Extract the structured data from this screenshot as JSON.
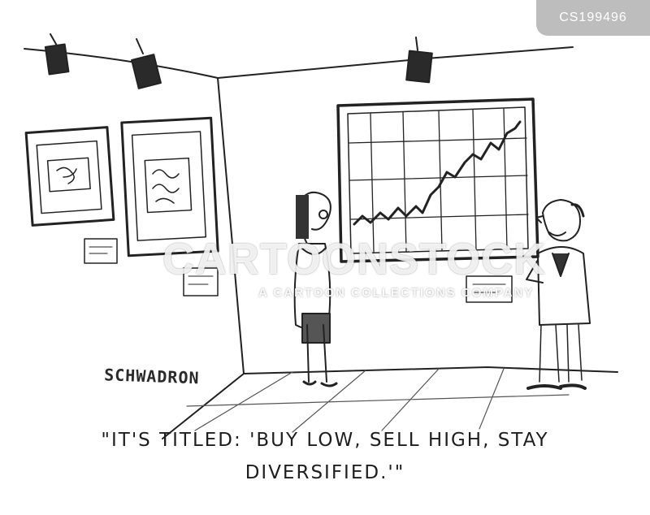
{
  "cartoon": {
    "id_tag": "CS199496",
    "signature": "SCHWADRON",
    "caption_line1": "\"IT'S TITLED: 'BUY LOW, SELL HIGH, STAY",
    "caption_line2": "DIVERSIFIED.'\""
  },
  "watermark": {
    "brand": "CARTOONSTOCK",
    "collection": "A CARTOON COLLECTIONS COMPANY"
  },
  "colors": {
    "ink": "#222222",
    "tag_background": "#bdbdbd",
    "paper": "#ffffff"
  },
  "painting_chart": {
    "trend": "rising zigzag line on a grid"
  }
}
